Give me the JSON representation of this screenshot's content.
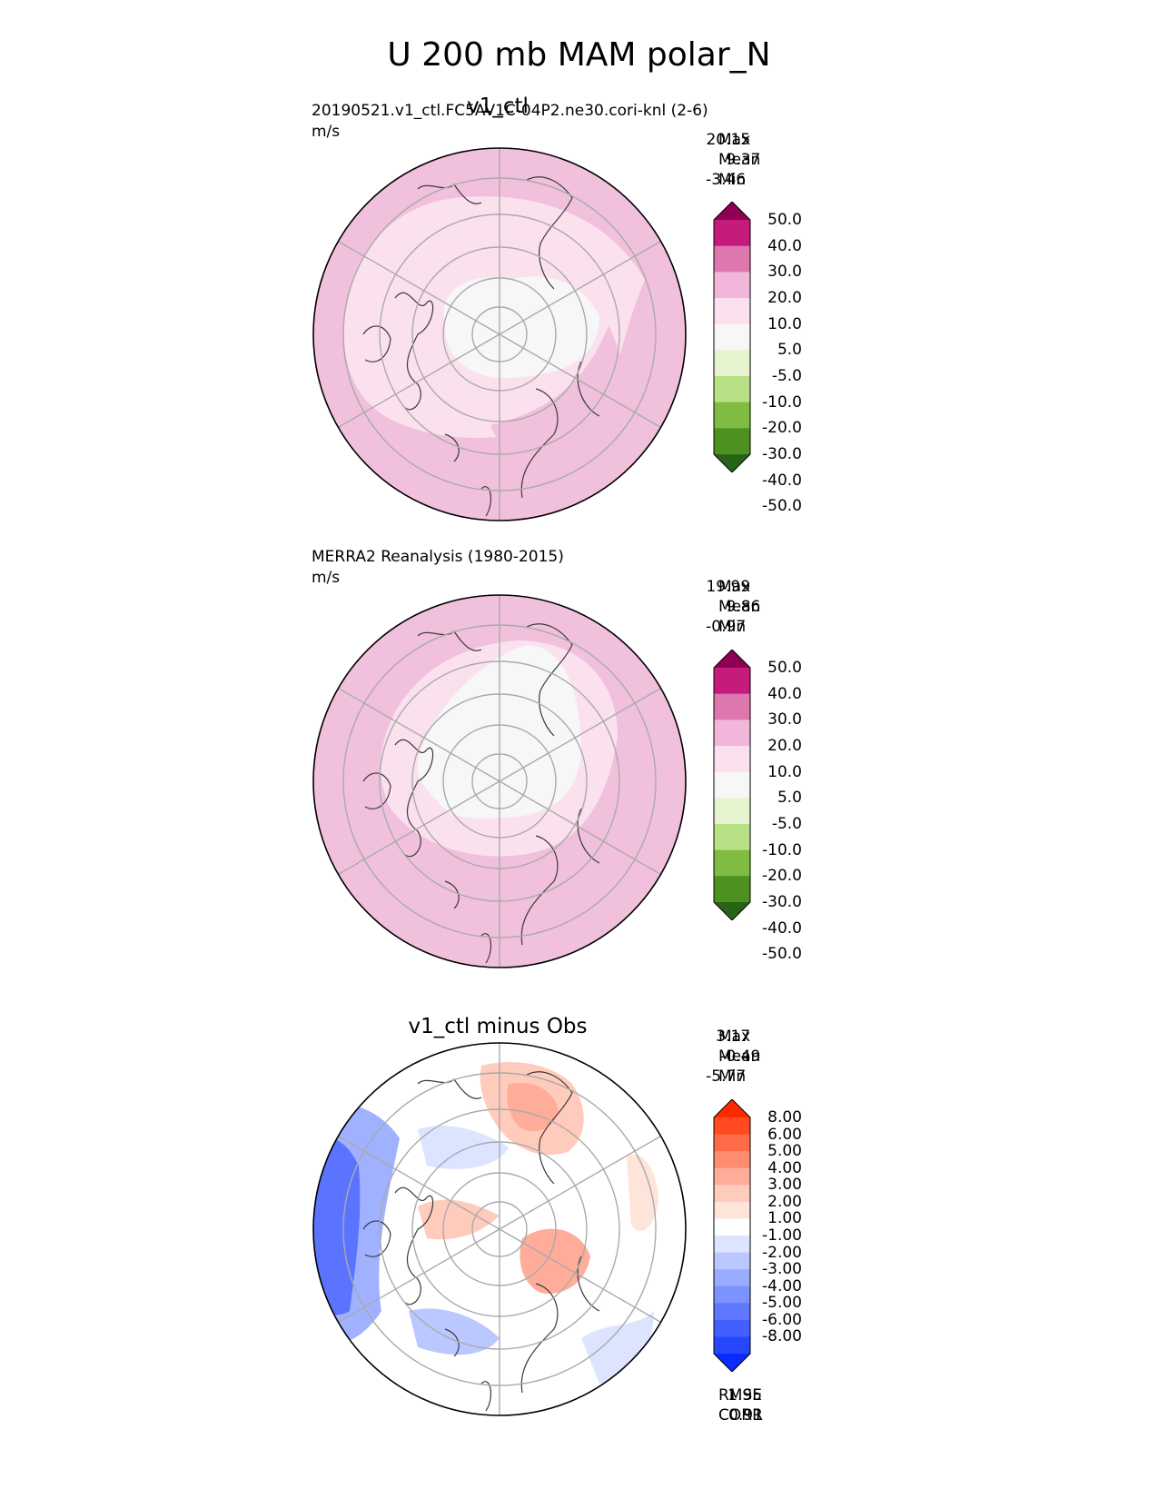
{
  "title": "U 200 mb MAM polar_N",
  "panels": [
    {
      "key": "test",
      "title": "v1_ctl",
      "left_label": "20190521.v1_ctl.FC5AV1C-04P2.ne30.cori-knl (2-6)",
      "units": "m/s",
      "stats": [
        {
          "label": "Max",
          "value": "20.15"
        },
        {
          "label": "Mean",
          "value": "9.37"
        },
        {
          "label": "Min",
          "value": "-3.46"
        }
      ],
      "colorbar": {
        "colors": [
          "#8e0152",
          "#c51b7d",
          "#de77ae",
          "#f1b6da",
          "#fde0ef",
          "#f7f7f7",
          "#e6f5d0",
          "#b8e186",
          "#7fbc41",
          "#4d9221",
          "#276419"
        ],
        "tick_labels": [
          "50.0",
          "40.0",
          "30.0",
          "20.0",
          "10.0",
          "5.0",
          "-5.0",
          "-10.0",
          "-20.0",
          "-30.0",
          "-40.0",
          "-50.0"
        ]
      }
    },
    {
      "key": "ref",
      "title": "",
      "left_label": "MERRA2 Reanalysis (1980-2015)",
      "units": "m/s",
      "stats": [
        {
          "label": "Max",
          "value": "19.99"
        },
        {
          "label": "Mean",
          "value": "9.86"
        },
        {
          "label": "Min",
          "value": "-0.97"
        }
      ],
      "colorbar": {
        "colors": [
          "#8e0152",
          "#c51b7d",
          "#de77ae",
          "#f1b6da",
          "#fde0ef",
          "#f7f7f7",
          "#e6f5d0",
          "#b8e186",
          "#7fbc41",
          "#4d9221",
          "#276419"
        ],
        "tick_labels": [
          "50.0",
          "40.0",
          "30.0",
          "20.0",
          "10.0",
          "5.0",
          "-5.0",
          "-10.0",
          "-20.0",
          "-30.0",
          "-40.0",
          "-50.0"
        ]
      }
    },
    {
      "key": "diff",
      "title": "v1_ctl minus Obs",
      "left_label": "",
      "units": "",
      "stats": [
        {
          "label": "Max",
          "value": "3.17"
        },
        {
          "label": "Mean",
          "value": "-0.49"
        },
        {
          "label": "Min",
          "value": "-5.77"
        }
      ],
      "extra_stats": [
        {
          "label": "RMSE",
          "value": "1.95"
        },
        {
          "label": "CORR",
          "value": "0.91"
        }
      ],
      "colorbar": {
        "colors": [
          "#ff2a00",
          "#ff4b1f",
          "#ff6b47",
          "#ff8c70",
          "#ffad99",
          "#ffcbbd",
          "#ffe4da",
          "#ffffff",
          "#dde4ff",
          "#bbc8ff",
          "#9aacff",
          "#7c92ff",
          "#5f78ff",
          "#4360ff",
          "#2747ff",
          "#0a2cff"
        ],
        "tick_labels": [
          "8.00",
          "6.00",
          "5.00",
          "4.00",
          "3.00",
          "2.00",
          "1.00",
          "-1.00",
          "-2.00",
          "-3.00",
          "-4.00",
          "-5.00",
          "-6.00",
          "-8.00"
        ]
      }
    }
  ],
  "chart_data": {
    "type": "heatmap",
    "title": "U 200 mb MAM polar_N",
    "projection": "north polar stereographic",
    "variable": "U 200 mb",
    "season": "MAM",
    "grid": true,
    "panels": [
      {
        "name": "v1_ctl",
        "units": "m/s",
        "max": 20.15,
        "mean": 9.37,
        "min": -3.46,
        "levels": [
          -50,
          -40,
          -30,
          -20,
          -10,
          -5,
          5,
          10,
          20,
          30,
          40,
          50
        ]
      },
      {
        "name": "MERRA2 Reanalysis (1980-2015)",
        "units": "m/s",
        "max": 19.99,
        "mean": 9.86,
        "min": -0.97,
        "levels": [
          -50,
          -40,
          -30,
          -20,
          -10,
          -5,
          5,
          10,
          20,
          30,
          40,
          50
        ]
      },
      {
        "name": "v1_ctl minus Obs",
        "max": 3.17,
        "mean": -0.49,
        "min": -5.77,
        "rmse": 1.95,
        "corr": 0.91,
        "levels": [
          -8,
          -6,
          -5,
          -4,
          -3,
          -2,
          -1,
          1,
          2,
          3,
          4,
          5,
          6,
          8
        ]
      }
    ]
  }
}
